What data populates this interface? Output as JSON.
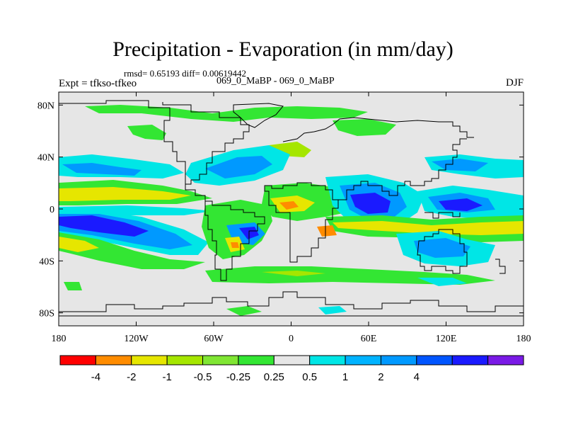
{
  "title": "Precipitation - Evaporation (in mm/day)",
  "stats": "rmsd= 0.65193  diff= 0.00619442",
  "experiment": "Expt = tfkso-tfkeo",
  "case_label": "069_0_MaBP - 069_0_MaBP",
  "season": "DJF",
  "map": {
    "lon_range": [
      -180,
      180
    ],
    "lat_range": [
      -90,
      90
    ],
    "x_ticks": [
      {
        "value": -180,
        "label": "180"
      },
      {
        "value": -120,
        "label": "120W"
      },
      {
        "value": -60,
        "label": "60W"
      },
      {
        "value": 0,
        "label": "0"
      },
      {
        "value": 60,
        "label": "60E"
      },
      {
        "value": 120,
        "label": "120E"
      },
      {
        "value": 180,
        "label": "180"
      }
    ],
    "y_ticks": [
      {
        "value": 80,
        "label": "80N"
      },
      {
        "value": 40,
        "label": "40N"
      },
      {
        "value": 0,
        "label": "0"
      },
      {
        "value": -40,
        "label": "40S"
      },
      {
        "value": -80,
        "label": "80S"
      }
    ],
    "background_color": "#e6e6e6",
    "coast_color": "#000000"
  },
  "colorbar": {
    "colors": [
      "#ff0000",
      "#ff8c00",
      "#e6e600",
      "#a5e600",
      "#80e633",
      "#33e633",
      "#e6e6e6",
      "#00e6e6",
      "#00b3ff",
      "#0099ff",
      "#0055ff",
      "#1a1aff",
      "#7a1ae6"
    ],
    "labels": [
      "-4",
      "-2",
      "-1",
      "-0.5",
      "-0.25",
      "0.25",
      "0.5",
      "1",
      "2",
      "4"
    ]
  },
  "chart_data": {
    "type": "heatmap",
    "title": "Precipitation - Evaporation (in mm/day)",
    "variable_units": "mm/day",
    "color_levels": [
      -4,
      -2,
      -1,
      -0.5,
      -0.25,
      0.25,
      0.5,
      1,
      2,
      4
    ],
    "regions": [
      {
        "name": "n-pacific-midlat-blue",
        "lon": [
          -180,
          -110
        ],
        "lat": [
          22,
          34
        ],
        "value": 0.6
      },
      {
        "name": "n-atlantic-midlat-blue",
        "lon": [
          -78,
          -18
        ],
        "lat": [
          22,
          40
        ],
        "value": 0.8
      },
      {
        "name": "n-pacific-subtrop-yellow",
        "lon": [
          -180,
          -95
        ],
        "lat": [
          2,
          14
        ],
        "value": -1.5
      },
      {
        "name": "eq-pacific-green",
        "lon": [
          -180,
          -70
        ],
        "lat": [
          -2,
          4
        ],
        "value": -0.3
      },
      {
        "name": "s-pacific-dark-blue",
        "lon": [
          -180,
          -105
        ],
        "lat": [
          -26,
          -8
        ],
        "value": 2.5
      },
      {
        "name": "s-pacific-yellow",
        "lon": [
          -180,
          -135
        ],
        "lat": [
          -44,
          -32
        ],
        "value": -1.3
      },
      {
        "name": "s-america-blue",
        "lon": [
          -50,
          -25
        ],
        "lat": [
          -22,
          -10
        ],
        "value": 1.5
      },
      {
        "name": "africa-orange",
        "lon": [
          -5,
          20
        ],
        "lat": [
          -5,
          10
        ],
        "value": -2.5
      },
      {
        "name": "indian-ocean-dark-blue",
        "lon": [
          40,
          75
        ],
        "lat": [
          -15,
          20
        ],
        "value": 2.2
      },
      {
        "name": "maritime-blue",
        "lon": [
          90,
          130
        ],
        "lat": [
          -35,
          -15
        ],
        "value": 1.3
      },
      {
        "name": "w-pacific-dark-blue",
        "lon": [
          110,
          160
        ],
        "lat": [
          -5,
          5
        ],
        "value": 2.4
      },
      {
        "name": "s-pacific-cz-yellow",
        "lon": [
          120,
          180
        ],
        "lat": [
          -20,
          -8
        ],
        "value": -1.6
      },
      {
        "name": "southern-ocean-green",
        "lon": [
          -90,
          60
        ],
        "lat": [
          -52,
          -44
        ],
        "value": -0.4
      },
      {
        "name": "arctic-green",
        "lon": [
          -160,
          40
        ],
        "lat": [
          68,
          76
        ],
        "value": -0.3
      }
    ]
  }
}
